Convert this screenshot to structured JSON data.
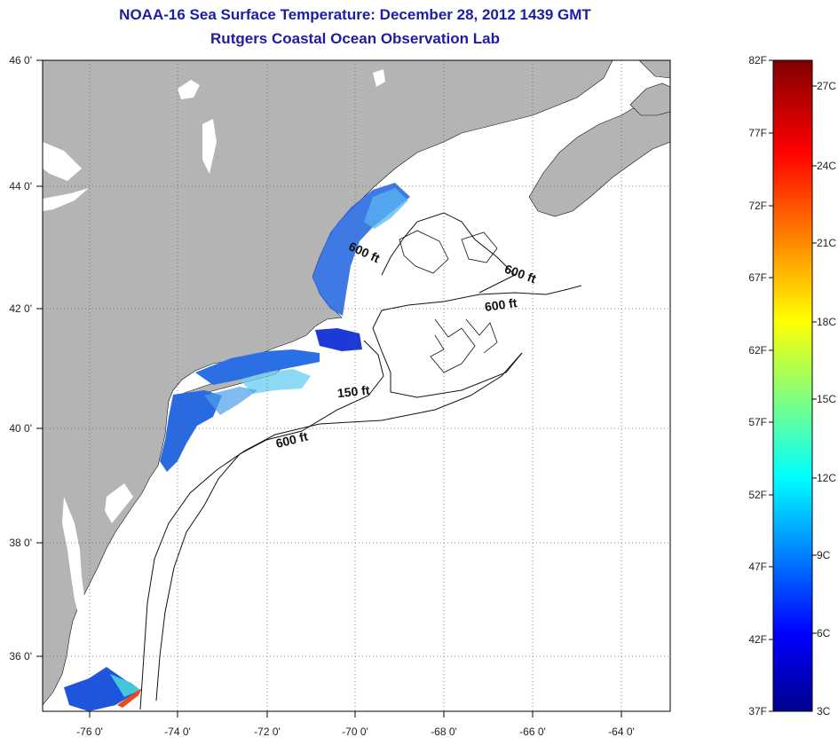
{
  "header": {
    "title": "NOAA-16 Sea Surface Temperature:  December 28, 2012 1439 GMT",
    "subtitle": "Rutgers Coastal Ocean Observation Lab"
  },
  "map": {
    "lat_labels": [
      "46 0'",
      "44 0'",
      "42 0'",
      "40 0'",
      "38 0'",
      "36 0'"
    ],
    "lon_labels": [
      "-76 0'",
      "-74 0'",
      "-72 0'",
      "-70 0'",
      "-68 0'",
      "-66 0'",
      "-64 0'"
    ],
    "contour_labels": [
      "600 ft",
      "600 ft",
      "600 ft",
      "150 ft",
      "600 ft"
    ],
    "colors": {
      "land": "#b4b4b4",
      "ocean": "#ffffff",
      "grid": "#888888"
    }
  },
  "colorbar": {
    "fahrenheit_labels": [
      "82F",
      "77F",
      "72F",
      "67F",
      "62F",
      "57F",
      "52F",
      "47F",
      "42F",
      "37F"
    ],
    "celsius_labels": [
      "27C",
      "24C",
      "21C",
      "18C",
      "15C",
      "12C",
      "9C",
      "6C",
      "3C"
    ]
  }
}
